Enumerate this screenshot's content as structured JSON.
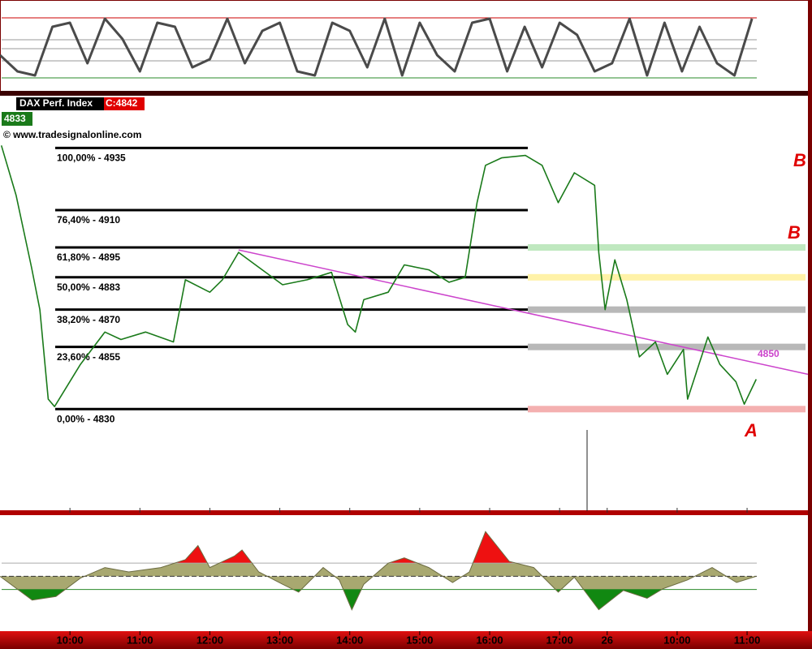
{
  "header": {
    "symbol": "DAX Perf. Index",
    "close": "C:4842",
    "last": "4833",
    "source": "© www.tradesignalonline.com"
  },
  "chart_data": [
    {
      "type": "line",
      "ylim": [
        0,
        100
      ],
      "levels": [
        {
          "value": 86,
          "color": "#cc0000"
        },
        {
          "value": 59,
          "color": "#999999"
        },
        {
          "value": 48,
          "color": "#999999"
        },
        {
          "value": 33,
          "color": "#999999"
        },
        {
          "value": 12,
          "color": "#2a8a2a"
        }
      ],
      "series": [
        {
          "color": "#4a4a4a",
          "x": [
            9.0,
            9.25,
            9.5,
            9.75,
            10.0,
            10.25,
            10.5,
            10.75,
            11.0,
            11.25,
            11.5,
            11.75,
            12.0,
            12.25,
            12.5,
            12.75,
            13.0,
            13.25,
            13.5,
            13.75,
            14.0,
            14.25,
            14.5,
            14.75,
            15.0,
            15.25,
            15.5,
            15.75,
            16.0,
            16.25,
            16.5,
            16.75,
            17.0,
            17.25,
            17.5,
            17.75,
            18.0,
            18.25,
            18.5,
            18.75,
            19.0,
            19.25,
            19.5,
            19.75
          ],
          "values": [
            40,
            20,
            15,
            75,
            80,
            30,
            85,
            60,
            20,
            80,
            75,
            25,
            35,
            85,
            30,
            70,
            80,
            20,
            15,
            80,
            70,
            25,
            85,
            15,
            80,
            40,
            20,
            80,
            85,
            20,
            75,
            25,
            80,
            65,
            20,
            30,
            85,
            15,
            80,
            20,
            75,
            30,
            15,
            85
          ]
        }
      ]
    },
    {
      "type": "line",
      "xlim": [
        9.0,
        20.55
      ],
      "ylim": [
        4789,
        4956
      ],
      "xticks": [
        {
          "value": 10,
          "label": "10:00"
        },
        {
          "value": 11,
          "label": "11:00"
        },
        {
          "value": 12,
          "label": "12:00"
        },
        {
          "value": 13,
          "label": "13:00"
        },
        {
          "value": 14,
          "label": "14:00"
        },
        {
          "value": 15,
          "label": "15:00"
        },
        {
          "value": 16,
          "label": "16:00"
        },
        {
          "value": 17,
          "label": "17:00"
        },
        {
          "value": 17.68,
          "label": "26"
        },
        {
          "value": 18.68,
          "label": "10:00"
        },
        {
          "value": 19.68,
          "label": "11:00"
        }
      ],
      "series": [
        {
          "color": "#1a7a1a",
          "x": [
            9.02,
            9.23,
            9.45,
            9.57,
            9.69,
            9.78,
            10.15,
            10.5,
            10.73,
            11.08,
            11.48,
            11.65,
            12.0,
            12.18,
            12.41,
            12.7,
            13.04,
            13.39,
            13.74,
            13.97,
            14.08,
            14.2,
            14.55,
            14.78,
            15.13,
            15.42,
            15.65,
            15.82,
            15.94,
            16.17,
            16.51,
            16.75,
            16.98,
            17.21,
            17.5,
            17.56,
            17.65,
            17.79,
            17.96,
            18.14,
            18.37,
            18.54,
            18.77,
            18.83,
            19.12,
            19.29,
            19.52,
            19.64,
            19.81
          ],
          "values": [
            4936,
            4916,
            4887,
            4870,
            4834,
            4831,
            4848,
            4861,
            4858,
            4861,
            4857,
            4882,
            4877,
            4882,
            4893,
            4887,
            4880,
            4882,
            4885,
            4864,
            4861,
            4874,
            4877,
            4888,
            4886,
            4881,
            4883,
            4913,
            4928,
            4931,
            4932,
            4928,
            4913,
            4925,
            4920,
            4893,
            4870,
            4890,
            4874,
            4851,
            4857,
            4844,
            4854,
            4834,
            4859,
            4848,
            4841,
            4832,
            4842
          ]
        }
      ],
      "fib_levels": [
        {
          "label": "100,00% - 4935",
          "value": 4935
        },
        {
          "label": "76,40% - 4910",
          "value": 4910
        },
        {
          "label": "61,80% - 4895",
          "value": 4895,
          "zone_color": "#bfe8bf"
        },
        {
          "label": "50,00% - 4883",
          "value": 4883,
          "zone_color": "#fff2a8"
        },
        {
          "label": "38,20% - 4870",
          "value": 4870,
          "zone_color": "#b8b8b8"
        },
        {
          "label": "23,60% - 4855",
          "value": 4855,
          "zone_color": "#b8b8b8"
        },
        {
          "label": "0,00% - 4830",
          "value": 4830,
          "zone_color": "#f4b0b0"
        }
      ],
      "trendline": {
        "x": [
          12.41,
          20.55
        ],
        "values": [
          4894,
          4844
        ],
        "label": "4850",
        "color": "#cc44cc"
      },
      "annotations": [
        "B",
        "B",
        "A"
      ]
    },
    {
      "type": "area",
      "ylim": [
        -60,
        60
      ],
      "levels": [
        {
          "value": 10,
          "color": "#aaaaaa"
        },
        {
          "value": -5,
          "color": "#333333"
        },
        {
          "value": -20,
          "color": "#2a8a2a"
        }
      ],
      "fills": {
        "above": "#ee1111",
        "middle": "#a8a870",
        "below": "#118811"
      },
      "series": [
        {
          "color": "#6b6b40",
          "x": [
            9.0,
            9.46,
            9.8,
            10.15,
            10.5,
            10.84,
            11.3,
            11.65,
            11.83,
            12.0,
            12.35,
            12.46,
            12.7,
            13.04,
            13.27,
            13.62,
            13.85,
            14.03,
            14.2,
            14.55,
            14.78,
            15.13,
            15.47,
            15.71,
            15.94,
            16.28,
            16.63,
            16.98,
            17.21,
            17.56,
            17.91,
            18.25,
            18.48,
            18.83,
            19.18,
            19.53,
            19.81
          ],
          "values": [
            -5,
            -32,
            -28,
            -7,
            5,
            0,
            5,
            14,
            30,
            5,
            18,
            25,
            0,
            -14,
            -23,
            5,
            -9,
            -43,
            -14,
            10,
            16,
            5,
            -12,
            0,
            46,
            12,
            5,
            -23,
            -6,
            -43,
            -21,
            -30,
            -19,
            -9,
            5,
            -12,
            -5
          ]
        }
      ]
    }
  ]
}
